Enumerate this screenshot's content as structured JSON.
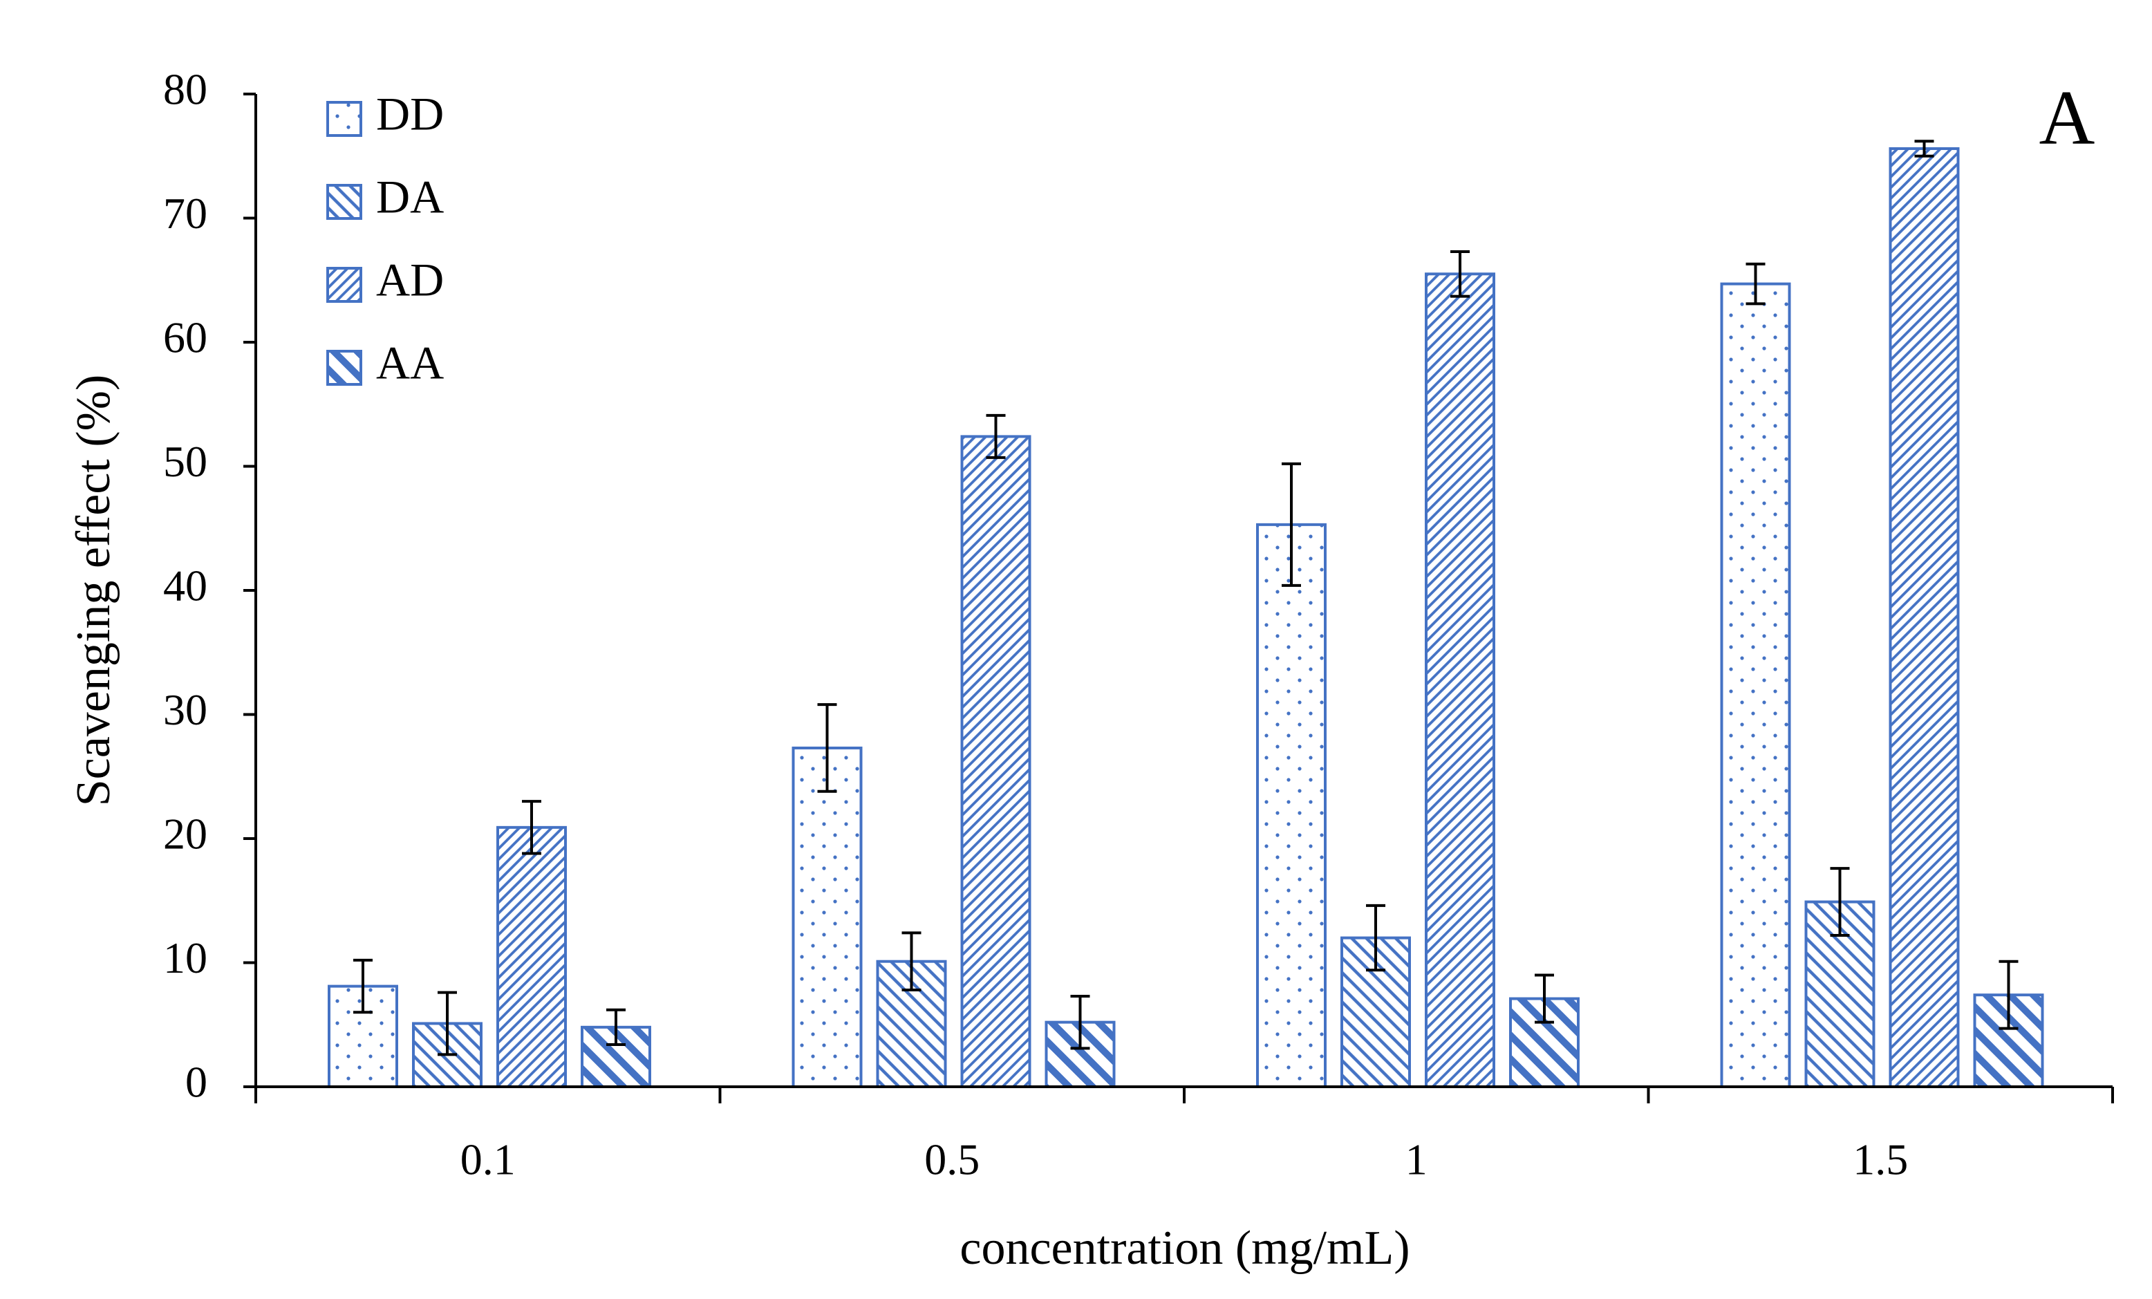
{
  "chart_data": {
    "type": "bar",
    "title": "",
    "panel_label": "A",
    "xlabel": "concentration (mg/mL)",
    "ylabel": "Scavenging effect (%)",
    "categories": [
      "0.1",
      "0.5",
      "1",
      "1.5"
    ],
    "ylim": [
      0,
      80
    ],
    "yticks": [
      0,
      10,
      20,
      30,
      40,
      50,
      60,
      70,
      80
    ],
    "grid": false,
    "legend_position": "top-left",
    "color": "#4472C4",
    "series": [
      {
        "name": "DD",
        "pattern": "dots",
        "values": [
          8.1,
          27.3,
          45.3,
          64.7
        ],
        "errors": [
          2.1,
          3.5,
          4.9,
          1.6
        ]
      },
      {
        "name": "DA",
        "pattern": "backslash-lines",
        "values": [
          5.1,
          10.1,
          12.0,
          14.9
        ],
        "errors": [
          2.5,
          2.3,
          2.6,
          2.7
        ]
      },
      {
        "name": "AD",
        "pattern": "slash-lines",
        "values": [
          20.9,
          52.4,
          65.5,
          75.6
        ],
        "errors": [
          2.1,
          1.7,
          1.8,
          0.6
        ]
      },
      {
        "name": "AA",
        "pattern": "thick-backslash",
        "values": [
          4.8,
          5.2,
          7.1,
          7.4
        ],
        "errors": [
          1.4,
          2.1,
          1.9,
          2.7
        ]
      }
    ]
  }
}
